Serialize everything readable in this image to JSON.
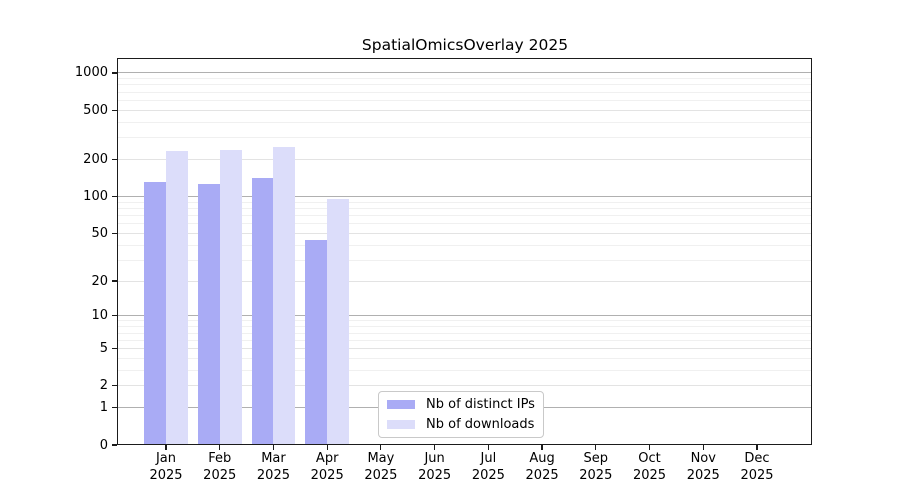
{
  "title": "SpatialOmicsOverlay 2025",
  "colors": {
    "ip_bar": "#a9abf5",
    "dl_bar": "#dcddfa",
    "grid_major": "#b0b0b0",
    "grid_mid": "#e3e3e3",
    "grid_minor": "#f0f0f0",
    "axis": "#1b1b1b",
    "legend_border": "#c9c9c9"
  },
  "legend": {
    "items": [
      {
        "label": "Nb of distinct IPs",
        "color": "#a9abf5"
      },
      {
        "label": "Nb of downloads",
        "color": "#dcddfa"
      }
    ]
  },
  "x_axis": {
    "months": [
      "Jan",
      "Feb",
      "Mar",
      "Apr",
      "May",
      "Jun",
      "Jul",
      "Aug",
      "Sep",
      "Oct",
      "Nov",
      "Dec"
    ],
    "year": "2025"
  },
  "y_axis": {
    "tick_values": [
      0,
      1,
      2,
      5,
      10,
      20,
      50,
      100,
      200,
      500,
      1000
    ],
    "major_grid_values": [
      1,
      10,
      100,
      1000
    ],
    "mid_grid_values": [
      2,
      5,
      20,
      50,
      200,
      500
    ],
    "minor_grid_values": [
      3,
      4,
      6,
      7,
      8,
      9,
      30,
      40,
      60,
      70,
      80,
      90,
      300,
      400,
      600,
      700,
      800,
      900
    ]
  },
  "chart_data": {
    "type": "bar",
    "title": "SpatialOmicsOverlay 2025",
    "categories": [
      "Jan 2025",
      "Feb 2025",
      "Mar 2025",
      "Apr 2025",
      "May 2025",
      "Jun 2025",
      "Jul 2025",
      "Aug 2025",
      "Sep 2025",
      "Oct 2025",
      "Nov 2025",
      "Dec 2025"
    ],
    "series": [
      {
        "name": "Nb of distinct IPs",
        "color": "#a9abf5",
        "values": [
          130,
          127,
          141,
          44,
          null,
          null,
          null,
          null,
          null,
          null,
          null,
          null
        ]
      },
      {
        "name": "Nb of downloads",
        "color": "#dcddfa",
        "values": [
          234,
          238,
          250,
          95,
          null,
          null,
          null,
          null,
          null,
          null,
          null,
          null
        ]
      }
    ],
    "yscale": "log1p",
    "y_ticks": [
      0,
      1,
      2,
      5,
      10,
      20,
      50,
      100,
      200,
      500,
      1000
    ],
    "ylim": [
      0,
      1320
    ],
    "grid": true,
    "legend_position": "bottom-center-inside"
  }
}
